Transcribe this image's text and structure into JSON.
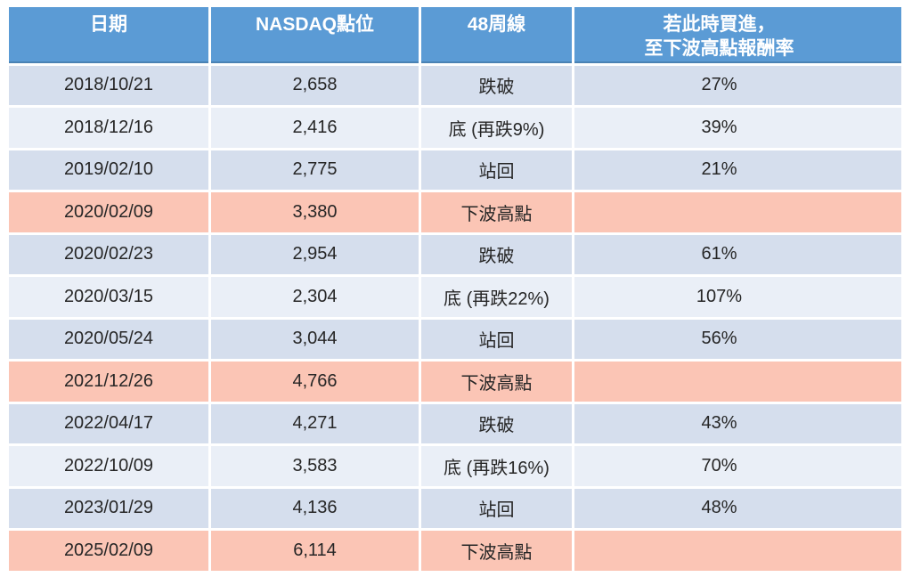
{
  "colors": {
    "header_bg": "#5B9BD5",
    "header_edge": "#4A82B4",
    "header_text": "#FFFFFF",
    "band_dark": "#D5DEED",
    "band_light": "#EAEFF7",
    "highlight": "#FBC5B5",
    "body_text": "#262626"
  },
  "table": {
    "columns": [
      {
        "label": "日期"
      },
      {
        "label": "NASDAQ點位"
      },
      {
        "label": "48周線"
      },
      {
        "label": "若此時買進，\n至下波高點報酬率"
      }
    ],
    "rows": [
      {
        "date": "2018/10/21",
        "nasdaq": "2,658",
        "week48": "跌破",
        "ret": "27%",
        "variant": "band-dark"
      },
      {
        "date": "2018/12/16",
        "nasdaq": "2,416",
        "week48": "底 (再跌9%)",
        "ret": "39%",
        "variant": "band-light"
      },
      {
        "date": "2019/02/10",
        "nasdaq": "2,775",
        "week48": "站回",
        "ret": "21%",
        "variant": "band-dark"
      },
      {
        "date": "2020/02/09",
        "nasdaq": "3,380",
        "week48": "下波高點",
        "ret": "",
        "variant": "highlight"
      },
      {
        "date": "2020/02/23",
        "nasdaq": "2,954",
        "week48": "跌破",
        "ret": "61%",
        "variant": "band-dark"
      },
      {
        "date": "2020/03/15",
        "nasdaq": "2,304",
        "week48": "底 (再跌22%)",
        "ret": "107%",
        "variant": "band-light"
      },
      {
        "date": "2020/05/24",
        "nasdaq": "3,044",
        "week48": "站回",
        "ret": "56%",
        "variant": "band-dark"
      },
      {
        "date": "2021/12/26",
        "nasdaq": "4,766",
        "week48": "下波高點",
        "ret": "",
        "variant": "highlight"
      },
      {
        "date": "2022/04/17",
        "nasdaq": "4,271",
        "week48": "跌破",
        "ret": "43%",
        "variant": "band-dark"
      },
      {
        "date": "2022/10/09",
        "nasdaq": "3,583",
        "week48": "底 (再跌16%)",
        "ret": "70%",
        "variant": "band-light"
      },
      {
        "date": "2023/01/29",
        "nasdaq": "4,136",
        "week48": "站回",
        "ret": "48%",
        "variant": "band-dark"
      },
      {
        "date": "2025/02/09",
        "nasdaq": "6,114",
        "week48": "下波高點",
        "ret": "",
        "variant": "highlight"
      }
    ]
  },
  "chart_data": {
    "type": "table",
    "title": "",
    "columns": [
      "日期",
      "NASDAQ點位",
      "48周線",
      "若此時買進，至下波高點報酬率"
    ],
    "rows": [
      [
        "2018/10/21",
        "2,658",
        "跌破",
        "27%"
      ],
      [
        "2018/12/16",
        "2,416",
        "底 (再跌9%)",
        "39%"
      ],
      [
        "2019/02/10",
        "2,775",
        "站回",
        "21%"
      ],
      [
        "2020/02/09",
        "3,380",
        "下波高點",
        ""
      ],
      [
        "2020/02/23",
        "2,954",
        "跌破",
        "61%"
      ],
      [
        "2020/03/15",
        "2,304",
        "底 (再跌22%)",
        "107%"
      ],
      [
        "2020/05/24",
        "3,044",
        "站回",
        "56%"
      ],
      [
        "2021/12/26",
        "4,766",
        "下波高點",
        ""
      ],
      [
        "2022/04/17",
        "4,271",
        "跌破",
        "43%"
      ],
      [
        "2022/10/09",
        "3,583",
        "底 (再跌16%)",
        "70%"
      ],
      [
        "2023/01/29",
        "4,136",
        "站回",
        "48%"
      ],
      [
        "2025/02/09",
        "6,114",
        "下波高點",
        ""
      ]
    ],
    "highlighted_rows": [
      3,
      7,
      11
    ],
    "layout_hints": {
      "header_color": "#5B9BD5",
      "row_banding": [
        "#D5DEED",
        "#EAEFF7"
      ],
      "highlight_color": "#FBC5B5"
    }
  }
}
